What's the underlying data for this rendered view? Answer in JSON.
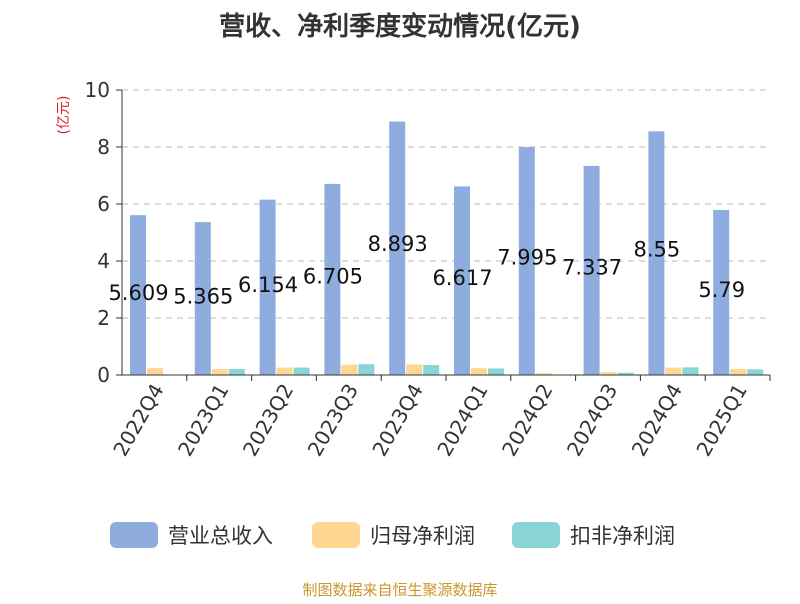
{
  "chart_data": {
    "type": "bar",
    "title": "营收、净利季度变动情况(亿元)",
    "ylabel": "(亿元)",
    "ylim": [
      0,
      10
    ],
    "yticks": [
      0,
      2,
      4,
      6,
      8,
      10
    ],
    "grid": true,
    "legend_position": "bottom",
    "categories": [
      "2022Q4",
      "2023Q1",
      "2023Q2",
      "2023Q3",
      "2023Q4",
      "2024Q1",
      "2024Q2",
      "2024Q3",
      "2024Q4",
      "2025Q1"
    ],
    "series": [
      {
        "name": "营业总收入",
        "color": "#8eadde",
        "values": [
          5.609,
          5.365,
          6.154,
          6.705,
          8.893,
          6.617,
          7.995,
          7.337,
          8.55,
          5.79
        ],
        "data_labels": [
          "5.609",
          "5.365",
          "6.154",
          "6.705",
          "8.893",
          "6.617",
          "7.995",
          "7.337",
          "8.55",
          "5.79"
        ]
      },
      {
        "name": "归母净利润",
        "color": "#fed792",
        "values": [
          0.24,
          0.21,
          0.26,
          0.36,
          0.37,
          0.24,
          0.06,
          0.1,
          0.26,
          0.21
        ]
      },
      {
        "name": "扣非净利润",
        "color": "#89d5d6",
        "values": [
          0.0,
          0.21,
          0.26,
          0.38,
          0.35,
          0.23,
          0.0,
          0.08,
          0.27,
          0.2
        ]
      }
    ],
    "source": "制图数据来自恒生聚源数据库"
  }
}
